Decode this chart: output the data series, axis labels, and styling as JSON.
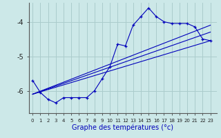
{
  "bg_color": "#cce8e8",
  "grid_color": "#aacccc",
  "line_color": "#0000bb",
  "xlabel": "Graphe des températures (°c)",
  "x_ticks": [
    0,
    1,
    2,
    3,
    4,
    5,
    6,
    7,
    8,
    9,
    10,
    11,
    12,
    13,
    14,
    15,
    16,
    17,
    18,
    19,
    20,
    21,
    22,
    23
  ],
  "yticks": [
    -6,
    -5,
    -4
  ],
  "xlim": [
    -0.5,
    23.8
  ],
  "ylim": [
    -6.65,
    -3.45
  ],
  "main_x": [
    0,
    1,
    2,
    3,
    4,
    5,
    6,
    7,
    8,
    9,
    10,
    11,
    12,
    13,
    14,
    15,
    16,
    17,
    18,
    19,
    20,
    21,
    22,
    23
  ],
  "main_y": [
    -5.7,
    -6.05,
    -6.25,
    -6.35,
    -6.2,
    -6.2,
    -6.2,
    -6.2,
    -6.0,
    -5.65,
    -5.3,
    -4.65,
    -4.7,
    -4.1,
    -3.85,
    -3.6,
    -3.85,
    -4.0,
    -4.05,
    -4.05,
    -4.05,
    -4.15,
    -4.5,
    -4.55
  ],
  "trend1_x": [
    0,
    23
  ],
  "trend1_y": [
    -6.1,
    -4.55
  ],
  "trend2_x": [
    0,
    23
  ],
  "trend2_y": [
    -6.1,
    -4.3
  ],
  "trend3_x": [
    0,
    23
  ],
  "trend3_y": [
    -6.1,
    -4.1
  ]
}
